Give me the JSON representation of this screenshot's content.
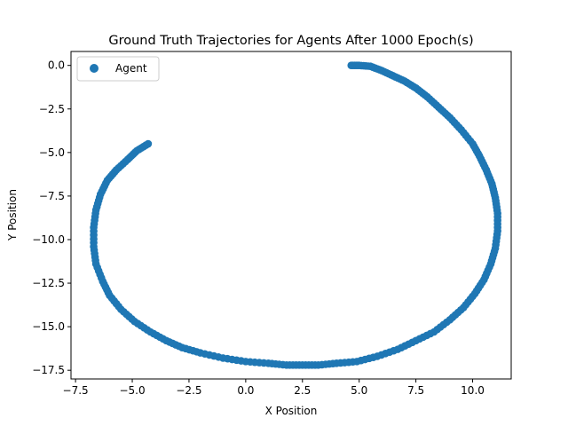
{
  "chart_data": {
    "type": "scatter",
    "title": "Ground Truth Trajectories for Agents After 1000 Epoch(s)",
    "xlabel": "X Position",
    "ylabel": "Y Position",
    "xlim": [
      -7.7,
      11.7
    ],
    "ylim": [
      -18.0,
      0.8
    ],
    "xticks": [
      -7.5,
      -5.0,
      -2.5,
      0.0,
      2.5,
      5.0,
      7.5,
      10.0
    ],
    "xtick_labels": [
      "−7.5",
      "−5.0",
      "−2.5",
      "0.0",
      "2.5",
      "5.0",
      "7.5",
      "10.0"
    ],
    "yticks": [
      0.0,
      -2.5,
      -5.0,
      -7.5,
      -10.0,
      -12.5,
      -15.0,
      -17.5
    ],
    "ytick_labels": [
      "0.0",
      "−2.5",
      "−5.0",
      "−7.5",
      "−10.0",
      "−12.5",
      "−15.0",
      "−17.5"
    ],
    "grid": false,
    "legend_position": "top-left",
    "series": [
      {
        "name": "Agent",
        "color": "#1f77b4",
        "x": [
          4.65,
          5.0,
          5.5,
          6.0,
          6.5,
          7.0,
          7.5,
          8.0,
          8.5,
          9.0,
          9.5,
          10.0,
          10.3,
          10.6,
          10.85,
          11.0,
          11.1,
          11.1,
          11.0,
          10.8,
          10.5,
          10.1,
          9.6,
          9.0,
          8.3,
          7.5,
          6.7,
          5.8,
          4.9,
          4.0,
          3.2,
          2.5,
          1.8,
          1.0,
          0.0,
          -1.0,
          -2.0,
          -2.8,
          -3.5,
          -4.2,
          -4.9,
          -5.5,
          -6.0,
          -6.3,
          -6.6,
          -6.7,
          -6.7,
          -6.6,
          -6.4,
          -6.1,
          -5.7,
          -5.2,
          -4.8,
          -4.3
        ],
        "y": [
          0.0,
          0.0,
          -0.05,
          -0.3,
          -0.6,
          -0.9,
          -1.3,
          -1.8,
          -2.4,
          -3.0,
          -3.7,
          -4.5,
          -5.2,
          -6.0,
          -6.8,
          -7.6,
          -8.5,
          -9.5,
          -10.5,
          -11.4,
          -12.3,
          -13.1,
          -13.9,
          -14.6,
          -15.3,
          -15.8,
          -16.3,
          -16.7,
          -17.0,
          -17.1,
          -17.2,
          -17.2,
          -17.2,
          -17.1,
          -17.0,
          -16.8,
          -16.5,
          -16.2,
          -15.8,
          -15.3,
          -14.7,
          -14.0,
          -13.2,
          -12.4,
          -11.4,
          -10.4,
          -9.3,
          -8.3,
          -7.4,
          -6.6,
          -6.0,
          -5.4,
          -4.9,
          -4.5
        ]
      }
    ]
  }
}
